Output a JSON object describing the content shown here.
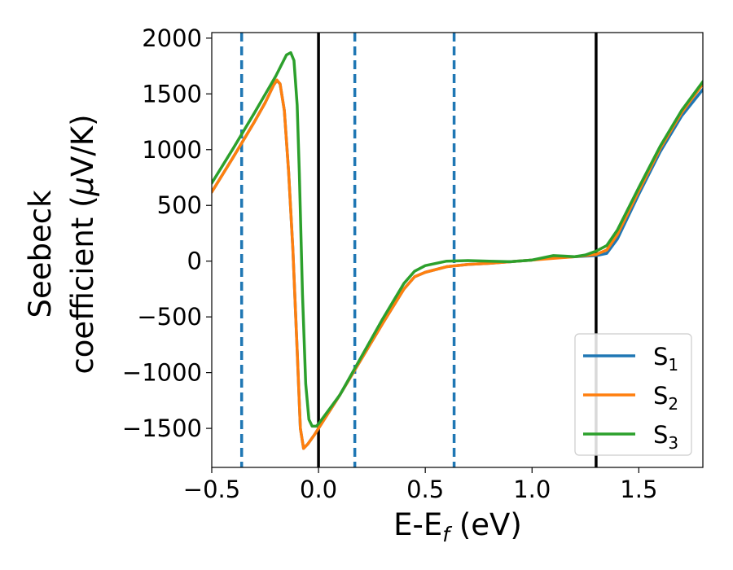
{
  "chart_data": {
    "type": "line",
    "title": "",
    "xlabel": "E-E$_f$ (eV)",
    "ylabel": "Seebeck\ncoefficient  ($\\mu$V/K)",
    "xlabel_parts": {
      "main": "E-E",
      "sub": "f",
      "rest": " (eV)"
    },
    "ylabel_lines": [
      "Seebeck",
      "coefficient  (",
      "μ",
      "V/K)"
    ],
    "xlim": [
      -0.5,
      1.8
    ],
    "ylim": [
      -1850,
      2050
    ],
    "xticks": [
      -0.5,
      0.0,
      0.5,
      1.0,
      1.5
    ],
    "xtick_labels": [
      "−0.5",
      "0.0",
      "0.5",
      "1.0",
      "1.5"
    ],
    "yticks": [
      -1500,
      -1000,
      -500,
      0,
      500,
      1000,
      1500,
      2000
    ],
    "ytick_labels": [
      "−1500",
      "−1000",
      "−500",
      "0",
      "500",
      "1000",
      "1500",
      "2000"
    ],
    "grid": false,
    "legend_placement": "lower-right",
    "vlines_solid": [
      0.0,
      1.3
    ],
    "vlines_dashed": [
      -0.36,
      0.17,
      0.635
    ],
    "vline_solid_color": "#000000",
    "vline_dashed_color": "#1f77b4",
    "series": [
      {
        "name": "S1",
        "label_main": "S",
        "label_sub": "1",
        "color": "#1f77b4",
        "points": [
          [
            -0.5,
            620
          ],
          [
            -0.4,
            930
          ],
          [
            -0.3,
            1250
          ],
          [
            -0.25,
            1420
          ],
          [
            -0.21,
            1580
          ],
          [
            -0.195,
            1620
          ],
          [
            -0.18,
            1590
          ],
          [
            -0.16,
            1350
          ],
          [
            -0.14,
            800
          ],
          [
            -0.12,
            100
          ],
          [
            -0.1,
            -800
          ],
          [
            -0.085,
            -1500
          ],
          [
            -0.07,
            -1680
          ],
          [
            -0.05,
            -1640
          ],
          [
            -0.02,
            -1560
          ],
          [
            0.0,
            -1500
          ],
          [
            0.1,
            -1200
          ],
          [
            0.2,
            -880
          ],
          [
            0.3,
            -560
          ],
          [
            0.4,
            -250
          ],
          [
            0.45,
            -140
          ],
          [
            0.5,
            -100
          ],
          [
            0.6,
            -50
          ],
          [
            0.7,
            -30
          ],
          [
            0.8,
            -20
          ],
          [
            0.9,
            -5
          ],
          [
            1.0,
            10
          ],
          [
            1.1,
            30
          ],
          [
            1.2,
            40
          ],
          [
            1.3,
            50
          ],
          [
            1.35,
            70
          ],
          [
            1.4,
            200
          ],
          [
            1.5,
            600
          ],
          [
            1.6,
            980
          ],
          [
            1.7,
            1300
          ],
          [
            1.8,
            1540
          ]
        ]
      },
      {
        "name": "S2",
        "label_main": "S",
        "label_sub": "2",
        "color": "#ff7f0e",
        "points": [
          [
            -0.5,
            620
          ],
          [
            -0.4,
            930
          ],
          [
            -0.3,
            1250
          ],
          [
            -0.25,
            1420
          ],
          [
            -0.21,
            1580
          ],
          [
            -0.195,
            1625
          ],
          [
            -0.18,
            1590
          ],
          [
            -0.16,
            1350
          ],
          [
            -0.14,
            800
          ],
          [
            -0.12,
            100
          ],
          [
            -0.1,
            -800
          ],
          [
            -0.085,
            -1500
          ],
          [
            -0.07,
            -1680
          ],
          [
            -0.05,
            -1640
          ],
          [
            -0.02,
            -1560
          ],
          [
            0.0,
            -1500
          ],
          [
            0.1,
            -1200
          ],
          [
            0.2,
            -880
          ],
          [
            0.3,
            -560
          ],
          [
            0.4,
            -250
          ],
          [
            0.45,
            -140
          ],
          [
            0.5,
            -100
          ],
          [
            0.6,
            -50
          ],
          [
            0.7,
            -30
          ],
          [
            0.8,
            -20
          ],
          [
            0.9,
            -5
          ],
          [
            1.0,
            10
          ],
          [
            1.1,
            25
          ],
          [
            1.2,
            40
          ],
          [
            1.3,
            60
          ],
          [
            1.35,
            100
          ],
          [
            1.4,
            240
          ],
          [
            1.5,
            630
          ],
          [
            1.6,
            1010
          ],
          [
            1.7,
            1330
          ],
          [
            1.8,
            1590
          ]
        ]
      },
      {
        "name": "S3",
        "label_main": "S",
        "label_sub": "3",
        "color": "#2ca02c",
        "points": [
          [
            -0.5,
            700
          ],
          [
            -0.4,
            1010
          ],
          [
            -0.3,
            1330
          ],
          [
            -0.2,
            1660
          ],
          [
            -0.15,
            1850
          ],
          [
            -0.13,
            1870
          ],
          [
            -0.115,
            1800
          ],
          [
            -0.1,
            1400
          ],
          [
            -0.09,
            800
          ],
          [
            -0.075,
            -300
          ],
          [
            -0.06,
            -1100
          ],
          [
            -0.045,
            -1420
          ],
          [
            -0.03,
            -1480
          ],
          [
            -0.01,
            -1480
          ],
          [
            0.0,
            -1460
          ],
          [
            0.1,
            -1200
          ],
          [
            0.2,
            -860
          ],
          [
            0.3,
            -520
          ],
          [
            0.4,
            -200
          ],
          [
            0.45,
            -90
          ],
          [
            0.5,
            -40
          ],
          [
            0.6,
            0
          ],
          [
            0.7,
            5
          ],
          [
            0.8,
            0
          ],
          [
            0.9,
            -5
          ],
          [
            1.0,
            10
          ],
          [
            1.05,
            30
          ],
          [
            1.1,
            50
          ],
          [
            1.15,
            45
          ],
          [
            1.2,
            40
          ],
          [
            1.25,
            55
          ],
          [
            1.3,
            90
          ],
          [
            1.35,
            140
          ],
          [
            1.4,
            280
          ],
          [
            1.5,
            660
          ],
          [
            1.6,
            1030
          ],
          [
            1.7,
            1350
          ],
          [
            1.8,
            1610
          ]
        ]
      }
    ]
  }
}
